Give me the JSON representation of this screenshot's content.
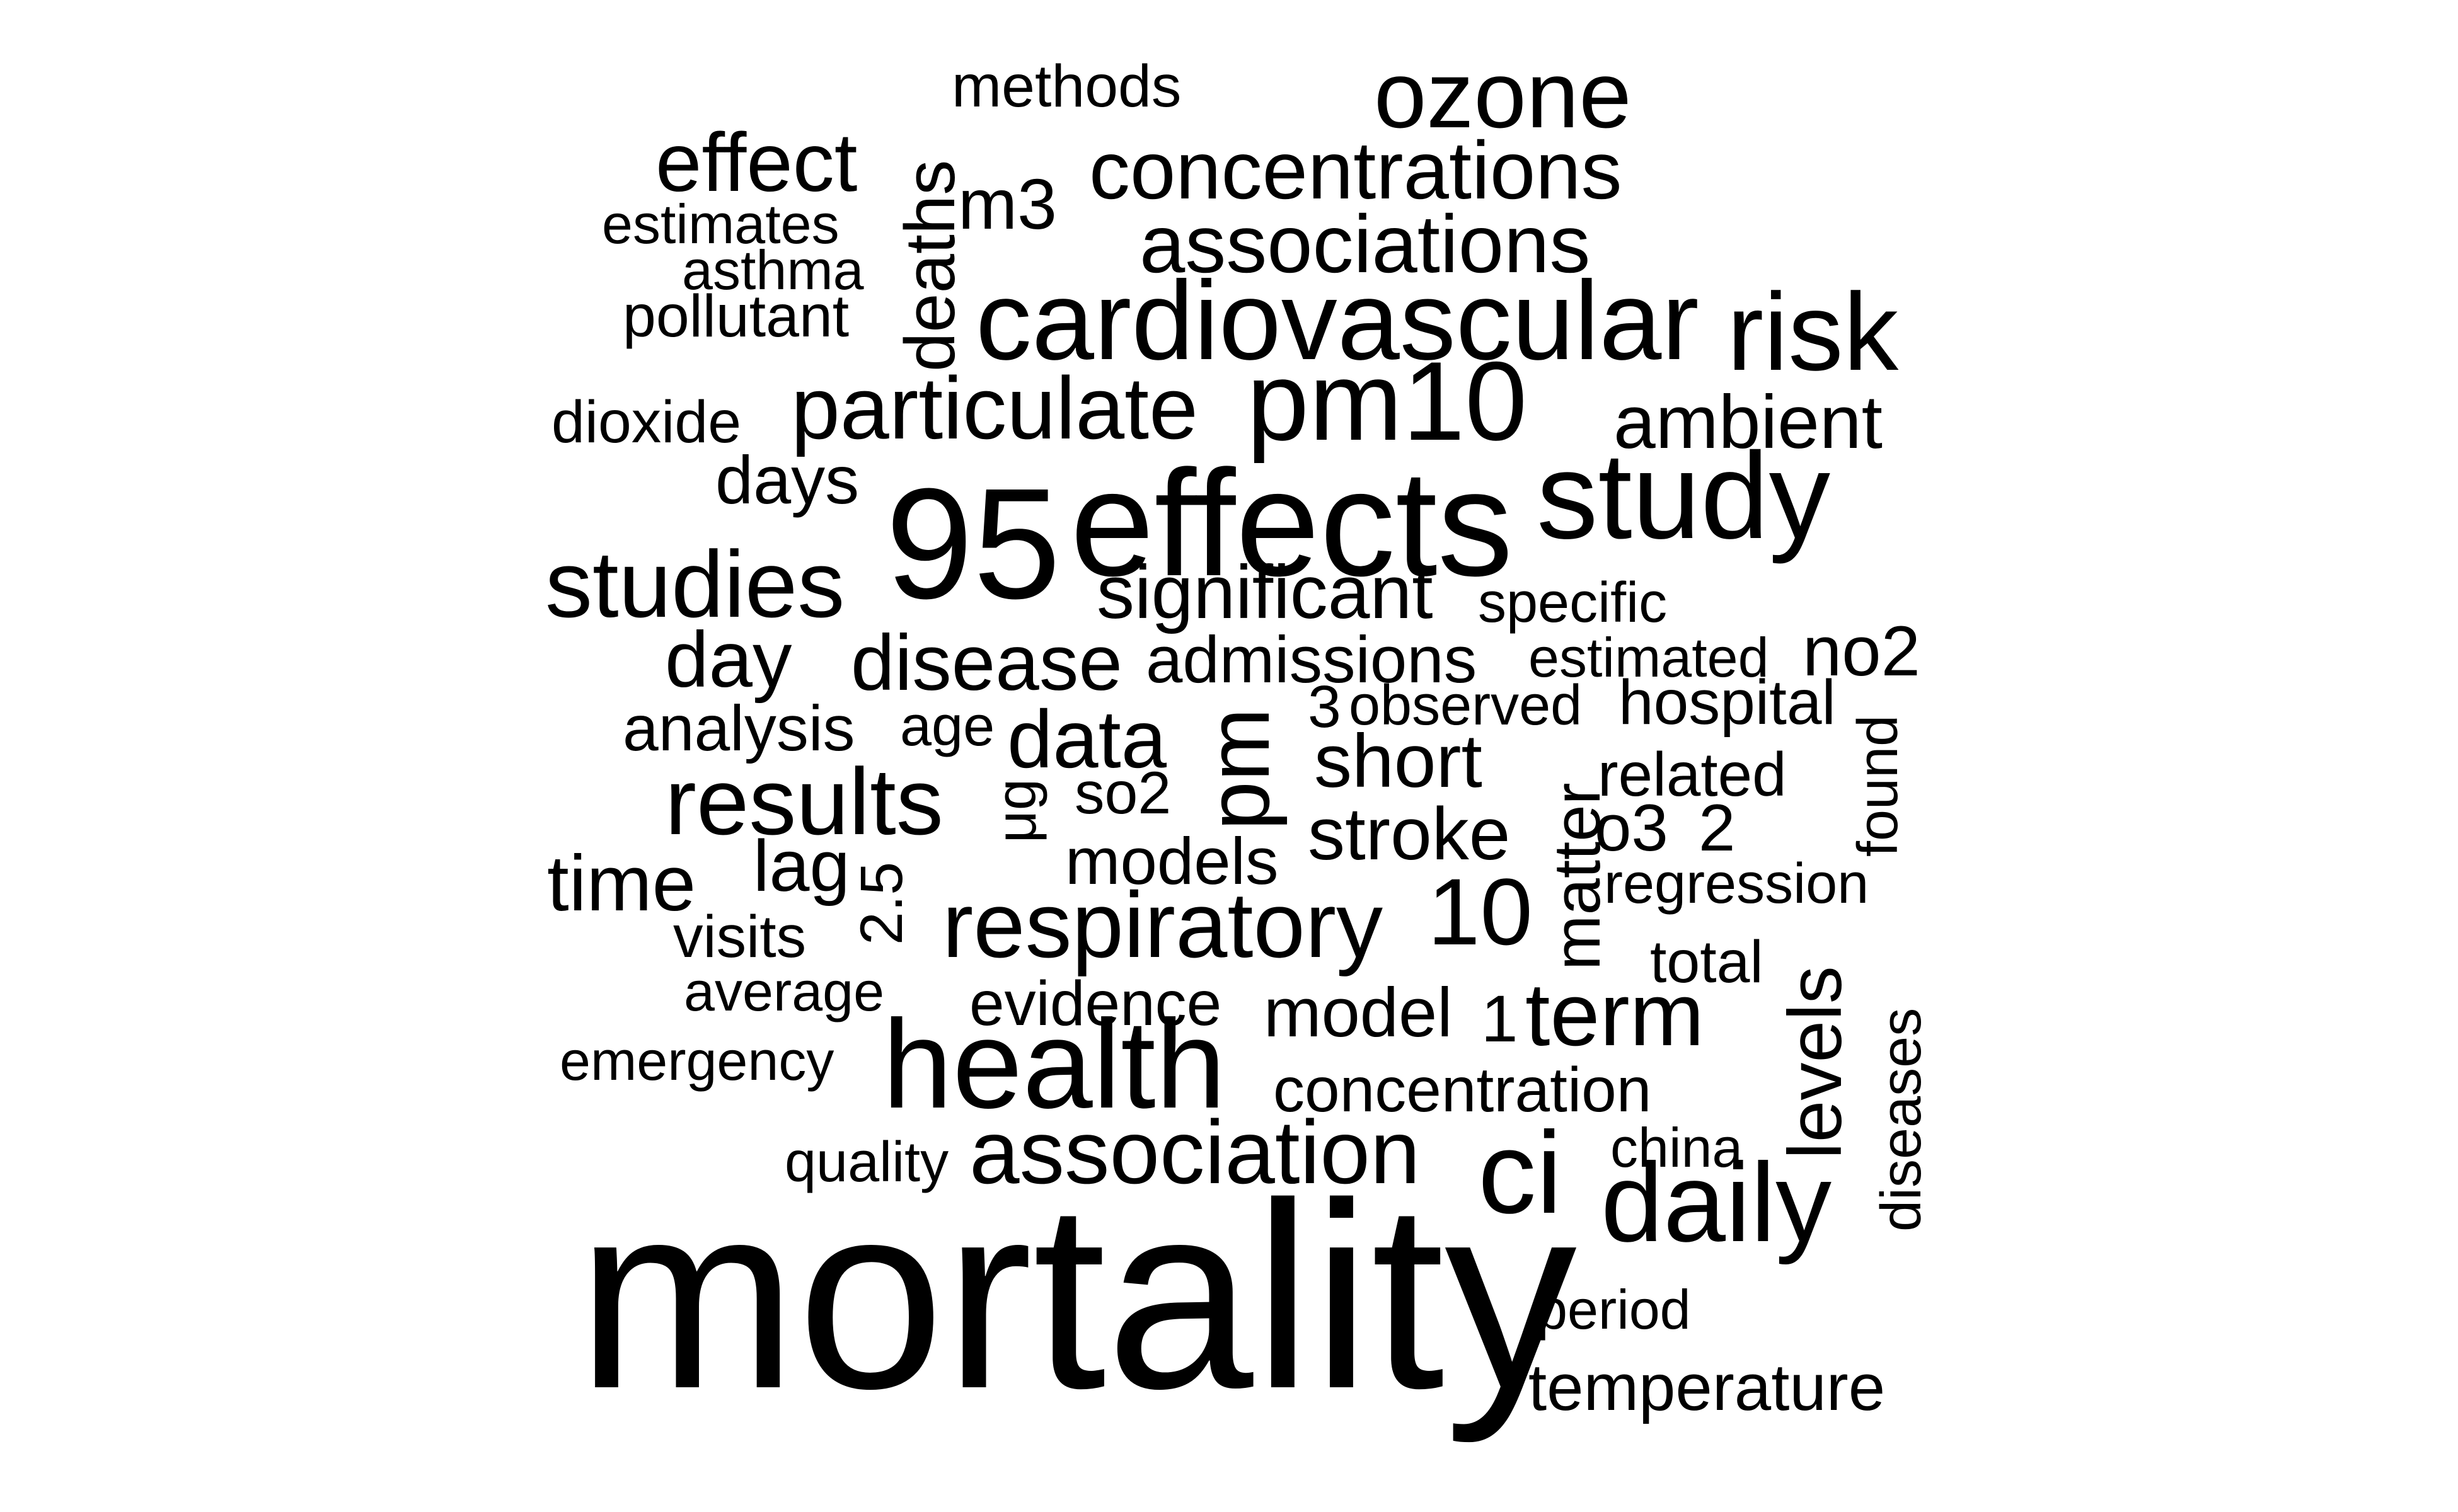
{
  "word_cloud": {
    "text_color": "#000000",
    "background_color": "#ffffff",
    "words": {
      "mortality": "mortality",
      "effects": "effects",
      "n95": "95",
      "study": "study",
      "health": "health",
      "cardiovascular": "cardiovascular",
      "pm10": "pm10",
      "risk": "risk",
      "daily": "daily",
      "ci": "ci",
      "ozone": "ozone",
      "concentrations": "concentrations",
      "associations": "associations",
      "particulate": "particulate",
      "studies": "studies",
      "results": "results",
      "respiratory": "respiratory",
      "association": "association",
      "effect": "effect",
      "deaths": "deaths",
      "m3": "m3",
      "methods": "methods",
      "estimates": "estimates",
      "asthma": "asthma",
      "pollutant": "pollutant",
      "dioxide": "dioxide",
      "days": "days",
      "ambient": "ambient",
      "significant": "significant",
      "specific": "specific",
      "day": "day",
      "disease": "disease",
      "admissions": "admissions",
      "estimated": "estimated",
      "no2": "no2",
      "analysis": "analysis",
      "age": "age",
      "data": "data",
      "pm": "pm",
      "n3": "3",
      "observed": "observed",
      "hospital": "hospital",
      "short": "short",
      "related": "related",
      "found": "found",
      "matter": "matter",
      "mu_g": "μg",
      "so2": "so2",
      "stroke": "stroke",
      "o3": "o3",
      "n2": "2",
      "time": "time",
      "lag": "lag",
      "n2_5": "2.5",
      "models": "models",
      "n10": "10",
      "regression": "regression",
      "visits": "visits",
      "total": "total",
      "average": "average",
      "evidence": "evidence",
      "model": "model",
      "n1": "1",
      "term": "term",
      "levels": "levels",
      "diseases": "diseases",
      "emergency": "emergency",
      "concentration": "concentration",
      "quality": "quality",
      "china": "china",
      "period": "period",
      "temperature": "temperature"
    }
  }
}
